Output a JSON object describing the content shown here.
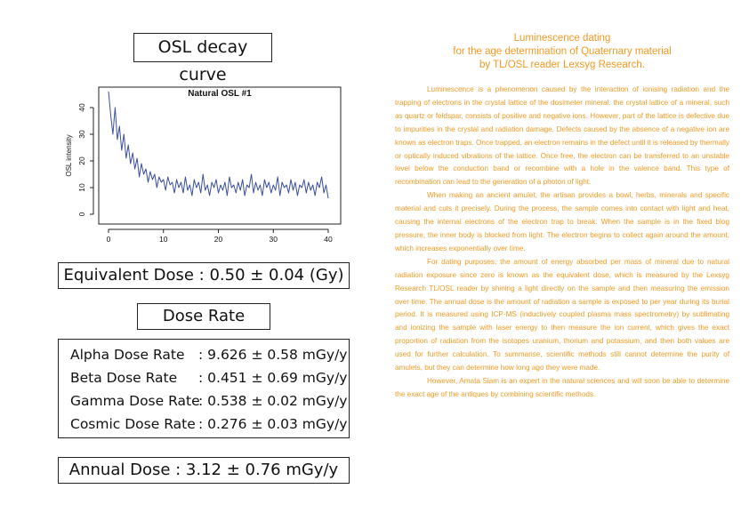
{
  "left_panel": {
    "title": "OSL decay curve",
    "equivalent_dose": "Equivalent Dose : 0.50 ± 0.04 (Gy)",
    "dose_rate_title": "Dose Rate",
    "rates": [
      {
        "label": "Alpha Dose Rate",
        "value": ": 9.626 ± 0.58 mGy/y"
      },
      {
        "label": "Beta Dose Rate",
        "value": ": 0.451 ± 0.69 mGy/y"
      },
      {
        "label": "Gamma Dose Rate",
        "value": ": 0.538 ± 0.02 mGy/y"
      },
      {
        "label": "Cosmic Dose Rate",
        "value": ": 0.276 ± 0.03 mGy/y"
      }
    ],
    "annual_dose": "Annual Dose : 3.12 ± 0.76 mGy/y"
  },
  "chart_data": {
    "type": "line",
    "title": "Natural OSL #1",
    "xlabel": "",
    "ylabel": "OSL intensity",
    "xlim": [
      0,
      40
    ],
    "ylim": [
      0,
      46
    ],
    "xticks": [
      "0",
      "10",
      "20",
      "30",
      "40"
    ],
    "yticks": [
      "0",
      "10",
      "20",
      "30",
      "40"
    ],
    "line_color": "#3a4fa0",
    "grid": false,
    "series": [
      {
        "x": [
          0,
          0.4,
          0.8,
          1.2,
          1.6,
          2,
          2.4,
          2.8,
          3.2,
          3.6,
          4,
          4.4,
          4.8,
          5.2,
          5.6,
          6,
          6.4,
          6.8,
          7.2,
          7.6,
          8,
          8.4,
          8.8,
          9.2,
          9.6,
          10,
          10.4,
          10.8,
          11.2,
          11.6,
          12,
          12.4,
          12.8,
          13.2,
          13.6,
          14,
          14.4,
          14.8,
          15.2,
          15.6,
          16,
          16.4,
          16.8,
          17.2,
          17.6,
          18,
          18.4,
          18.8,
          19.2,
          19.6,
          20,
          20.4,
          20.8,
          21.2,
          21.6,
          22,
          22.4,
          22.8,
          23.2,
          23.6,
          24,
          24.4,
          24.8,
          25.2,
          25.6,
          26,
          26.4,
          26.8,
          27.2,
          27.6,
          28,
          28.4,
          28.8,
          29.2,
          29.6,
          30,
          30.4,
          30.8,
          31.2,
          31.6,
          32,
          32.4,
          32.8,
          33.2,
          33.6,
          34,
          34.4,
          34.8,
          35.2,
          35.6,
          36,
          36.4,
          36.8,
          37.2,
          37.6,
          38,
          38.4,
          38.8,
          39.2,
          39.6,
          40
        ],
        "y": [
          46,
          37,
          30,
          40,
          28,
          33,
          24,
          30,
          21,
          26,
          19,
          23,
          17,
          21,
          14,
          19,
          15,
          17,
          12,
          16,
          13,
          15,
          10,
          14,
          12,
          13,
          9,
          14,
          11,
          12,
          8,
          13,
          10,
          12,
          8,
          14,
          9,
          11,
          7,
          13,
          10,
          12,
          8,
          15,
          9,
          11,
          7,
          12,
          10,
          13,
          8,
          11,
          9,
          12,
          7,
          14,
          10,
          11,
          8,
          12,
          9,
          13,
          7,
          11,
          10,
          15,
          8,
          12,
          9,
          11,
          7,
          13,
          10,
          12,
          8,
          11,
          9,
          14,
          7,
          12,
          10,
          11,
          8,
          13,
          9,
          12,
          7,
          11,
          10,
          13,
          8,
          12,
          9,
          11,
          7,
          12,
          10,
          14,
          8,
          11,
          6
        ]
      }
    ]
  },
  "article": {
    "heading": [
      "Luminescence dating",
      "for the age determination of Quaternary material",
      "by TL/OSL reader Lexsyg Research."
    ],
    "paragraphs": [
      "Luminescence is a phenomenon caused by the interaction of ionising radiation and the trapping of electrons in the crystal lattice of the dosimeter mineral. the crystal lattice of a mineral, such as quartz or feldspar, consists of positive and negative ions. However, part of the lattice is defective due to impurities in the crystal and radiation damage. Defects caused by the absence of a negative ion are known as electron traps. Once trapped, an electron remains in the defect until it is released by thermally or optically induced vibrations of the lattice. Once free, the electron can be transferred to an unstable level below the conduction band or recombine with a hole in the valence band. This type of recombination can lead to the generation of a photon of light.",
      "When making an ancient amulet, the artisan provides a bowl, herbs, minerals and specific material and cuts it precisely. During the process, the sample comes into contact with light and heat, causing the internal electrons of the electron trap to break. When the sample is in the fixed blog pressure, the inner body is blocked from light. The electron begins to collect again around the amount, which increases exponentially over time.",
      "For dating purposes, the amount of energy absorbed per mass of mineral due to natural radiation exposure since zero is known as the equivalent dose, which is measured by the Lexsyg Research TL/OSL reader by shining a light directly on the sample and then measuring the emission over time. The annual dose is the amount of radiation a sample is exposed to per year during its burial period. It is measured using ICP-MS (inductively coupled plasma mass spectrometry) by sublimating and ionizing the sample with laser energy to then measure the ion current, which gives the exact proportion of radiation from the isotopes uranium, thorium and potassium, and then both values are used for further calculation. To summarise, scientific methods still cannot determine the purity of amulets, but they can determine how long ago they were made.",
      "However, Amata Siam is an expert in the natural sciences and will soon be able to determine the exact age of the antiques by combining scientific methods."
    ],
    "text_color": "#f29a24"
  }
}
